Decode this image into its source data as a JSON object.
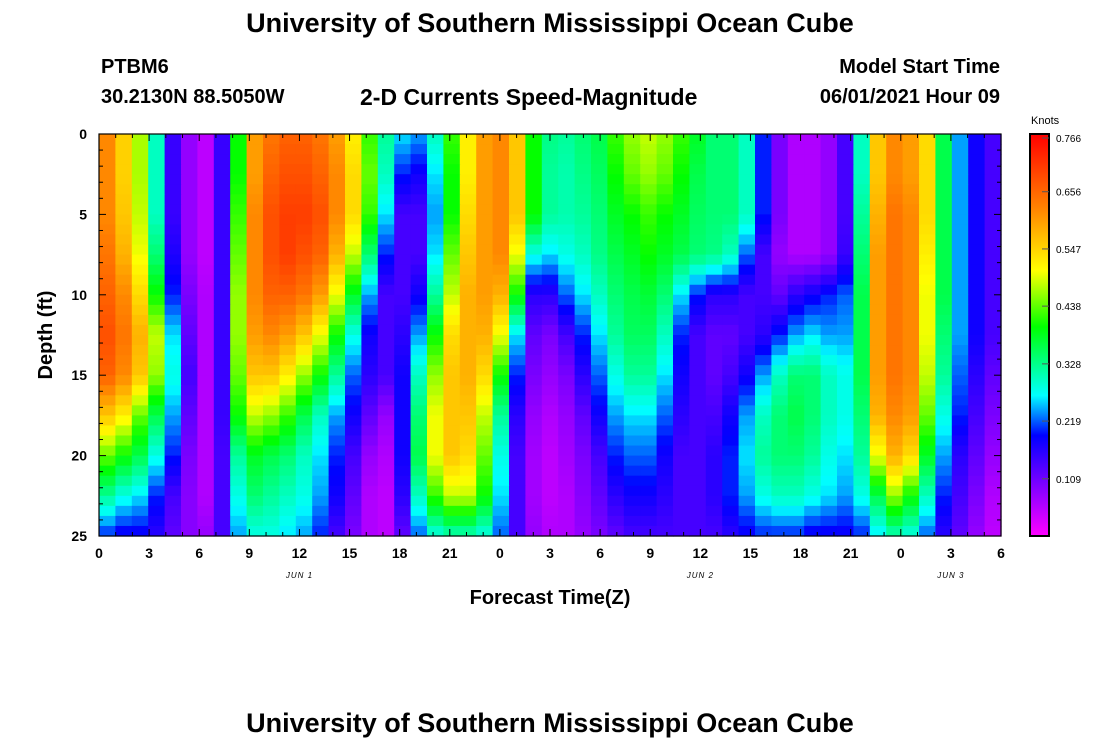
{
  "title": "University of Southern Mississippi Ocean Cube",
  "footer_title": "University of Southern Mississippi Ocean Cube",
  "header": {
    "station": "PTBM6",
    "coords": "30.2130N  88.5050W",
    "product": "2-D Currents Speed-Magnitude",
    "model_start_label": "Model Start Time",
    "model_start_value": "06/01/2021 Hour 09"
  },
  "chart_data": {
    "type": "heatmap",
    "xlabel": "Forecast Time(Z)",
    "ylabel": "Depth (ft)",
    "x_range_hours": [
      0,
      54
    ],
    "y_range_ft": [
      0,
      25
    ],
    "x_ticks": [
      {
        "h": 0,
        "label": "0"
      },
      {
        "h": 3,
        "label": "3"
      },
      {
        "h": 6,
        "label": "6"
      },
      {
        "h": 9,
        "label": "9"
      },
      {
        "h": 12,
        "label": "12"
      },
      {
        "h": 15,
        "label": "15"
      },
      {
        "h": 18,
        "label": "18"
      },
      {
        "h": 21,
        "label": "21"
      },
      {
        "h": 24,
        "label": "0"
      },
      {
        "h": 27,
        "label": "3"
      },
      {
        "h": 30,
        "label": "6"
      },
      {
        "h": 33,
        "label": "9"
      },
      {
        "h": 36,
        "label": "12"
      },
      {
        "h": 39,
        "label": "15"
      },
      {
        "h": 42,
        "label": "18"
      },
      {
        "h": 45,
        "label": "21"
      },
      {
        "h": 48,
        "label": "0"
      },
      {
        "h": 51,
        "label": "3"
      },
      {
        "h": 54,
        "label": "6"
      }
    ],
    "y_ticks": [
      0,
      5,
      10,
      15,
      20,
      25
    ],
    "date_labels": [
      {
        "h": 12,
        "label": "JUN 1"
      },
      {
        "h": 36,
        "label": "JUN 2"
      },
      {
        "h": 51,
        "label": "JUN 3"
      }
    ],
    "colorbar": {
      "unit": "Knots",
      "min": 0,
      "max": 0.766,
      "ticks": [
        "0.766",
        "0.656",
        "0.547",
        "0.438",
        "0.328",
        "0.219",
        "0.109"
      ]
    },
    "hours": [
      0,
      1,
      2,
      3,
      4,
      5,
      6,
      7,
      8,
      9,
      10,
      11,
      12,
      13,
      14,
      15,
      16,
      17,
      18,
      19,
      20,
      21,
      22,
      23,
      24,
      25,
      26,
      27,
      28,
      29,
      30,
      31,
      32,
      33,
      34,
      35,
      36,
      37,
      38,
      39,
      40,
      41,
      42,
      43,
      44,
      45,
      46,
      47,
      48,
      49,
      50,
      51,
      52,
      53,
      54
    ],
    "depths_ft": [
      0,
      2.5,
      5,
      7.5,
      10,
      12.5,
      15,
      17.5,
      20,
      22.5,
      25
    ],
    "speed_knots_by_depth": [
      [
        0.62,
        0.55,
        0.47,
        0.3,
        0.15,
        0.08,
        0.05,
        0.15,
        0.4,
        0.6,
        0.64,
        0.66,
        0.66,
        0.64,
        0.6,
        0.52,
        0.42,
        0.32,
        0.26,
        0.24,
        0.3,
        0.42,
        0.52,
        0.6,
        0.62,
        0.56,
        0.4,
        0.33,
        0.32,
        0.34,
        0.36,
        0.42,
        0.46,
        0.48,
        0.46,
        0.42,
        0.38,
        0.34,
        0.34,
        0.3,
        0.2,
        0.1,
        0.06,
        0.06,
        0.08,
        0.14,
        0.3,
        0.56,
        0.62,
        0.6,
        0.54,
        0.36,
        0.24,
        0.18,
        0.14
      ],
      [
        0.62,
        0.55,
        0.47,
        0.3,
        0.15,
        0.08,
        0.05,
        0.15,
        0.4,
        0.6,
        0.66,
        0.68,
        0.68,
        0.66,
        0.62,
        0.54,
        0.44,
        0.3,
        0.2,
        0.18,
        0.26,
        0.4,
        0.52,
        0.6,
        0.62,
        0.56,
        0.4,
        0.32,
        0.31,
        0.33,
        0.35,
        0.4,
        0.44,
        0.46,
        0.44,
        0.4,
        0.36,
        0.34,
        0.34,
        0.3,
        0.2,
        0.1,
        0.06,
        0.06,
        0.08,
        0.14,
        0.3,
        0.56,
        0.62,
        0.6,
        0.54,
        0.36,
        0.24,
        0.18,
        0.14
      ],
      [
        0.62,
        0.56,
        0.48,
        0.3,
        0.15,
        0.08,
        0.05,
        0.15,
        0.42,
        0.62,
        0.68,
        0.7,
        0.7,
        0.68,
        0.62,
        0.54,
        0.42,
        0.26,
        0.14,
        0.14,
        0.24,
        0.4,
        0.54,
        0.6,
        0.62,
        0.56,
        0.4,
        0.32,
        0.31,
        0.32,
        0.34,
        0.38,
        0.4,
        0.42,
        0.4,
        0.38,
        0.35,
        0.34,
        0.34,
        0.3,
        0.2,
        0.1,
        0.06,
        0.06,
        0.08,
        0.14,
        0.32,
        0.58,
        0.64,
        0.62,
        0.54,
        0.36,
        0.24,
        0.18,
        0.14
      ],
      [
        0.64,
        0.58,
        0.5,
        0.34,
        0.17,
        0.08,
        0.05,
        0.15,
        0.44,
        0.62,
        0.68,
        0.7,
        0.68,
        0.66,
        0.58,
        0.48,
        0.34,
        0.2,
        0.14,
        0.14,
        0.26,
        0.44,
        0.56,
        0.6,
        0.62,
        0.5,
        0.28,
        0.26,
        0.28,
        0.3,
        0.33,
        0.36,
        0.38,
        0.4,
        0.38,
        0.36,
        0.34,
        0.33,
        0.3,
        0.22,
        0.14,
        0.08,
        0.06,
        0.06,
        0.08,
        0.15,
        0.34,
        0.6,
        0.64,
        0.62,
        0.52,
        0.36,
        0.24,
        0.18,
        0.14
      ],
      [
        0.66,
        0.62,
        0.54,
        0.4,
        0.2,
        0.1,
        0.06,
        0.15,
        0.46,
        0.62,
        0.66,
        0.66,
        0.64,
        0.6,
        0.5,
        0.38,
        0.24,
        0.14,
        0.14,
        0.18,
        0.32,
        0.48,
        0.58,
        0.6,
        0.58,
        0.4,
        0.16,
        0.16,
        0.22,
        0.26,
        0.3,
        0.34,
        0.36,
        0.37,
        0.34,
        0.26,
        0.2,
        0.16,
        0.16,
        0.14,
        0.14,
        0.12,
        0.16,
        0.18,
        0.2,
        0.22,
        0.36,
        0.6,
        0.64,
        0.62,
        0.5,
        0.36,
        0.24,
        0.18,
        0.14
      ],
      [
        0.68,
        0.64,
        0.58,
        0.48,
        0.26,
        0.12,
        0.06,
        0.15,
        0.46,
        0.6,
        0.62,
        0.6,
        0.56,
        0.5,
        0.4,
        0.28,
        0.18,
        0.14,
        0.16,
        0.24,
        0.4,
        0.54,
        0.58,
        0.58,
        0.5,
        0.26,
        0.12,
        0.1,
        0.14,
        0.2,
        0.26,
        0.32,
        0.35,
        0.35,
        0.3,
        0.2,
        0.14,
        0.12,
        0.12,
        0.14,
        0.16,
        0.2,
        0.24,
        0.26,
        0.24,
        0.24,
        0.36,
        0.6,
        0.64,
        0.62,
        0.5,
        0.34,
        0.24,
        0.18,
        0.14
      ],
      [
        0.66,
        0.62,
        0.56,
        0.46,
        0.28,
        0.14,
        0.06,
        0.15,
        0.44,
        0.56,
        0.56,
        0.52,
        0.46,
        0.4,
        0.32,
        0.22,
        0.16,
        0.14,
        0.18,
        0.3,
        0.46,
        0.56,
        0.58,
        0.54,
        0.4,
        0.2,
        0.1,
        0.08,
        0.1,
        0.16,
        0.22,
        0.28,
        0.32,
        0.32,
        0.26,
        0.18,
        0.14,
        0.12,
        0.14,
        0.18,
        0.24,
        0.3,
        0.34,
        0.34,
        0.3,
        0.28,
        0.36,
        0.6,
        0.64,
        0.62,
        0.48,
        0.32,
        0.22,
        0.16,
        0.12
      ],
      [
        0.56,
        0.52,
        0.44,
        0.36,
        0.24,
        0.12,
        0.06,
        0.15,
        0.4,
        0.48,
        0.46,
        0.42,
        0.36,
        0.3,
        0.24,
        0.18,
        0.12,
        0.08,
        0.18,
        0.34,
        0.5,
        0.56,
        0.56,
        0.48,
        0.32,
        0.16,
        0.08,
        0.06,
        0.08,
        0.12,
        0.18,
        0.24,
        0.26,
        0.26,
        0.22,
        0.16,
        0.14,
        0.14,
        0.18,
        0.24,
        0.3,
        0.34,
        0.36,
        0.34,
        0.3,
        0.28,
        0.34,
        0.58,
        0.62,
        0.6,
        0.44,
        0.28,
        0.2,
        0.14,
        0.1
      ],
      [
        0.44,
        0.4,
        0.36,
        0.28,
        0.2,
        0.1,
        0.06,
        0.14,
        0.32,
        0.38,
        0.36,
        0.34,
        0.3,
        0.26,
        0.2,
        0.14,
        0.08,
        0.06,
        0.18,
        0.36,
        0.5,
        0.56,
        0.54,
        0.44,
        0.28,
        0.14,
        0.07,
        0.05,
        0.07,
        0.1,
        0.14,
        0.2,
        0.22,
        0.22,
        0.18,
        0.14,
        0.14,
        0.16,
        0.2,
        0.26,
        0.32,
        0.34,
        0.34,
        0.32,
        0.28,
        0.26,
        0.32,
        0.5,
        0.58,
        0.54,
        0.38,
        0.24,
        0.16,
        0.12,
        0.08
      ],
      [
        0.32,
        0.28,
        0.26,
        0.2,
        0.14,
        0.09,
        0.06,
        0.14,
        0.28,
        0.34,
        0.32,
        0.3,
        0.28,
        0.24,
        0.18,
        0.12,
        0.06,
        0.05,
        0.16,
        0.3,
        0.42,
        0.48,
        0.48,
        0.4,
        0.26,
        0.14,
        0.07,
        0.05,
        0.06,
        0.09,
        0.12,
        0.16,
        0.18,
        0.18,
        0.16,
        0.14,
        0.14,
        0.16,
        0.2,
        0.24,
        0.28,
        0.3,
        0.3,
        0.28,
        0.26,
        0.24,
        0.28,
        0.36,
        0.46,
        0.4,
        0.3,
        0.2,
        0.14,
        0.1,
        0.06
      ],
      [
        0.2,
        0.18,
        0.18,
        0.16,
        0.12,
        0.09,
        0.08,
        0.14,
        0.24,
        0.28,
        0.28,
        0.26,
        0.24,
        0.2,
        0.14,
        0.1,
        0.06,
        0.05,
        0.12,
        0.22,
        0.28,
        0.3,
        0.3,
        0.28,
        0.22,
        0.14,
        0.08,
        0.06,
        0.06,
        0.08,
        0.1,
        0.12,
        0.14,
        0.14,
        0.14,
        0.14,
        0.14,
        0.14,
        0.16,
        0.18,
        0.2,
        0.2,
        0.2,
        0.18,
        0.18,
        0.18,
        0.2,
        0.26,
        0.3,
        0.28,
        0.22,
        0.16,
        0.12,
        0.08,
        0.05
      ]
    ]
  }
}
